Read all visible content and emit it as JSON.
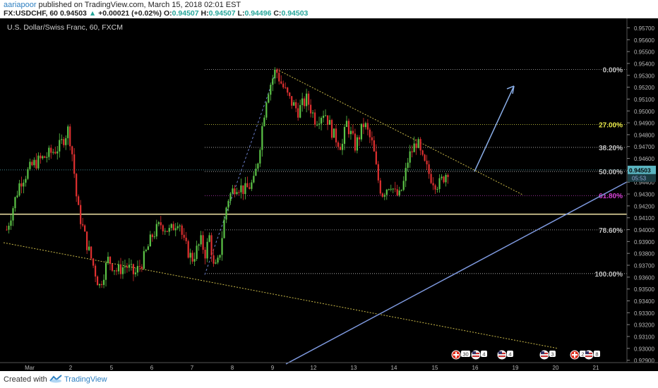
{
  "header": {
    "author": "aariapoor",
    "published": "published on TradingView.com, March 15, 2018 02:01 EST",
    "symbol": "FX:USDCHF, 60",
    "last": "0.94503",
    "change": "+0.00021 (+0.02%)",
    "o_label": "O:",
    "o": "0.94507",
    "h_label": "H:",
    "h": "0.94507",
    "l_label": "L:",
    "l": "0.94496",
    "c_label": "C:",
    "c": "0.94503"
  },
  "footer": {
    "created": "Created with",
    "brand": "TradingView"
  },
  "chart_data": {
    "type": "candlestick",
    "title": "U.S. Dollar/Swiss Franc, 60, FXCM",
    "y_range": [
      0.9288,
      0.9578
    ],
    "y_ticks": [
      "0.95700",
      "0.95600",
      "0.95500",
      "0.95400",
      "0.95300",
      "0.95200",
      "0.95100",
      "0.95000",
      "0.94900",
      "0.94800",
      "0.94700",
      "0.94600",
      "0.94500",
      "0.94400",
      "0.94300",
      "0.94200",
      "0.94100",
      "0.94000",
      "0.93900",
      "0.93800",
      "0.93700",
      "0.93600",
      "0.93500",
      "0.93400",
      "0.93300",
      "0.93200",
      "0.93100",
      "0.93000",
      "0.92900"
    ],
    "x_labels": [
      "Mar",
      "2",
      "5",
      "6",
      "7",
      "8",
      "9",
      "12",
      "13",
      "14",
      "15",
      "16",
      "19",
      "20",
      "21"
    ],
    "current_price": "0.94503",
    "current_box2": "05:53",
    "price_path": [
      [
        0,
        0.94
      ],
      [
        0.03,
        0.944
      ],
      [
        0.06,
        0.9455
      ],
      [
        0.09,
        0.9462
      ],
      [
        0.12,
        0.947
      ],
      [
        0.14,
        0.9485
      ],
      [
        0.15,
        0.946
      ],
      [
        0.16,
        0.942
      ],
      [
        0.18,
        0.939
      ],
      [
        0.2,
        0.9365
      ],
      [
        0.21,
        0.9352
      ],
      [
        0.23,
        0.9375
      ],
      [
        0.25,
        0.9365
      ],
      [
        0.27,
        0.937
      ],
      [
        0.29,
        0.9362
      ],
      [
        0.31,
        0.9375
      ],
      [
        0.33,
        0.9395
      ],
      [
        0.35,
        0.9405
      ],
      [
        0.37,
        0.9398
      ],
      [
        0.39,
        0.941
      ],
      [
        0.4,
        0.939
      ],
      [
        0.42,
        0.9375
      ],
      [
        0.44,
        0.939
      ],
      [
        0.45,
        0.938
      ],
      [
        0.46,
        0.9395
      ],
      [
        0.47,
        0.9365
      ],
      [
        0.48,
        0.9373
      ],
      [
        0.49,
        0.94
      ],
      [
        0.5,
        0.9425
      ],
      [
        0.52,
        0.9438
      ],
      [
        0.54,
        0.9433
      ],
      [
        0.56,
        0.944
      ],
      [
        0.57,
        0.946
      ],
      [
        0.58,
        0.949
      ],
      [
        0.59,
        0.9515
      ],
      [
        0.61,
        0.9535
      ],
      [
        0.62,
        0.9525
      ],
      [
        0.64,
        0.951
      ],
      [
        0.66,
        0.95
      ],
      [
        0.68,
        0.951
      ],
      [
        0.7,
        0.9492
      ],
      [
        0.72,
        0.95
      ],
      [
        0.74,
        0.948
      ],
      [
        0.76,
        0.947
      ],
      [
        0.77,
        0.949
      ],
      [
        0.78,
        0.948
      ],
      [
        0.79,
        0.947
      ],
      [
        0.81,
        0.949
      ],
      [
        0.83,
        0.947
      ],
      [
        0.84,
        0.9445
      ],
      [
        0.85,
        0.943
      ],
      [
        0.87,
        0.944
      ],
      [
        0.88,
        0.943
      ],
      [
        0.89,
        0.9428
      ],
      [
        0.9,
        0.944
      ],
      [
        0.91,
        0.946
      ],
      [
        0.93,
        0.9475
      ],
      [
        0.94,
        0.946
      ],
      [
        0.96,
        0.9445
      ],
      [
        0.97,
        0.944
      ],
      [
        0.98,
        0.9438
      ],
      [
        1.0,
        0.94503
      ]
    ],
    "fibonacci": [
      {
        "label": "0.00%",
        "price": 0.9535,
        "color": "#c0c0c0"
      },
      {
        "label": "27.00%",
        "price": 0.94885,
        "color": "#e8e84a"
      },
      {
        "label": "38.20%",
        "price": 0.94693,
        "color": "#c0c0c0"
      },
      {
        "label": "50.00%",
        "price": 0.9449,
        "color": "#c0c0c0"
      },
      {
        "label": "61.80%",
        "price": 0.94287,
        "color": "#d040d0"
      },
      {
        "label": "78.60%",
        "price": 0.93998,
        "color": "#c0c0c0"
      },
      {
        "label": "100.00%",
        "price": 0.9363,
        "color": "#c0c0c0"
      }
    ],
    "horizontal_line": 0.9413
  },
  "events_icons": [
    "flag-swiss-icon",
    "flag-us-icon",
    "flag-us-icon",
    "flag-us-icon",
    "flag-swiss-icon",
    "flag-us-icon",
    "flag-us-icon"
  ],
  "event_counts": [
    "30",
    "4",
    "4",
    "3",
    "2",
    "8"
  ]
}
